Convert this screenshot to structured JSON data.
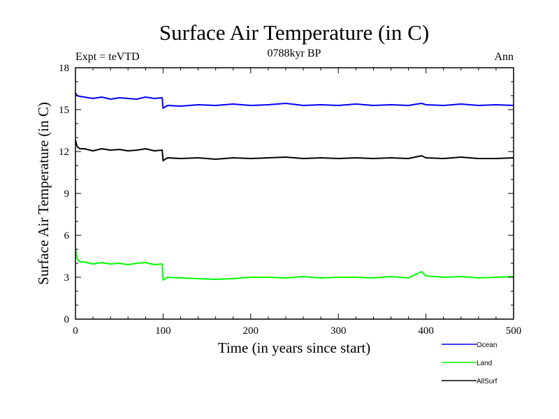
{
  "chart_data": {
    "type": "line",
    "title": "Surface Air Temperature (in C)",
    "subtitle": "0788kyr BP",
    "annotation_left": "Expt = teVTD",
    "annotation_right": "Ann",
    "xlabel": "Time (in years since start)",
    "ylabel": "Surface Air Temperature (in C)",
    "xlim": [
      0,
      500
    ],
    "ylim": [
      0,
      18
    ],
    "xticks": [
      0,
      100,
      200,
      300,
      400,
      500
    ],
    "yticks": [
      0,
      3,
      6,
      9,
      12,
      15,
      18
    ],
    "grid": false,
    "legend_position": "below-right",
    "x": [
      0,
      2,
      5,
      10,
      20,
      30,
      40,
      50,
      60,
      70,
      80,
      90,
      99,
      100,
      105,
      120,
      140,
      160,
      180,
      200,
      220,
      240,
      260,
      280,
      300,
      320,
      340,
      360,
      380,
      395,
      400,
      420,
      440,
      460,
      480,
      500
    ],
    "series": [
      {
        "name": "Ocean",
        "color": "#0000ff",
        "values": [
          16.2,
          16.0,
          15.95,
          15.9,
          15.8,
          15.9,
          15.75,
          15.85,
          15.8,
          15.75,
          15.9,
          15.8,
          15.85,
          15.1,
          15.3,
          15.25,
          15.35,
          15.3,
          15.4,
          15.3,
          15.35,
          15.45,
          15.3,
          15.35,
          15.3,
          15.4,
          15.3,
          15.35,
          15.3,
          15.45,
          15.35,
          15.3,
          15.4,
          15.3,
          15.35,
          15.3
        ]
      },
      {
        "name": "Land",
        "color": "#00ff00",
        "values": [
          5.0,
          4.3,
          4.1,
          4.1,
          3.95,
          4.05,
          3.95,
          4.0,
          3.9,
          4.0,
          4.05,
          3.9,
          3.95,
          2.8,
          3.0,
          2.95,
          2.9,
          2.85,
          2.9,
          3.0,
          3.0,
          2.95,
          3.05,
          2.95,
          3.0,
          3.0,
          2.95,
          3.05,
          2.95,
          3.4,
          3.1,
          3.0,
          3.05,
          2.95,
          3.0,
          3.05
        ]
      },
      {
        "name": "AllSurf",
        "color": "#000000",
        "values": [
          12.8,
          12.35,
          12.2,
          12.2,
          12.05,
          12.2,
          12.1,
          12.15,
          12.05,
          12.1,
          12.2,
          12.05,
          12.1,
          11.35,
          11.55,
          11.5,
          11.55,
          11.45,
          11.55,
          11.5,
          11.55,
          11.6,
          11.5,
          11.55,
          11.5,
          11.55,
          11.5,
          11.55,
          11.5,
          11.7,
          11.55,
          11.5,
          11.6,
          11.5,
          11.5,
          11.55
        ]
      }
    ]
  }
}
